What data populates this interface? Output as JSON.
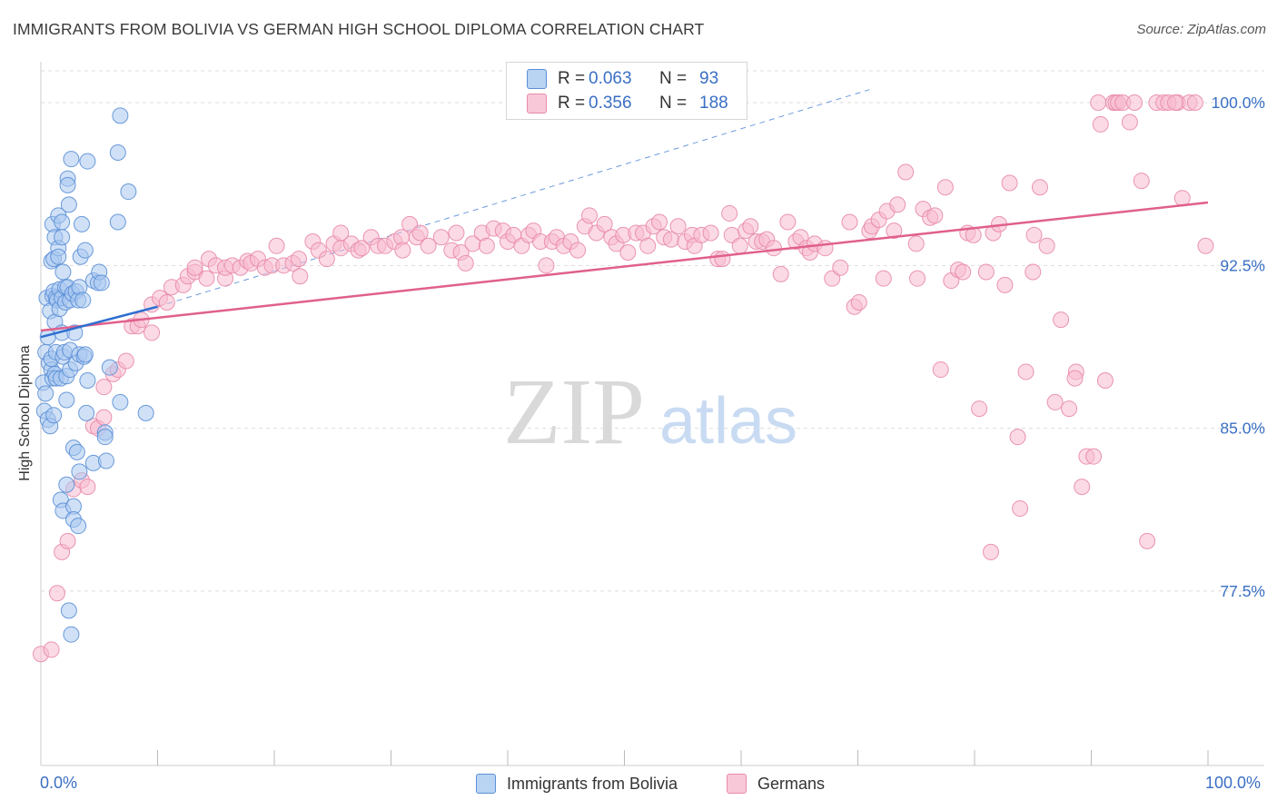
{
  "title": "IMMIGRANTS FROM BOLIVIA VS GERMAN HIGH SCHOOL DIPLOMA CORRELATION CHART",
  "source": "Source: ZipAtlas.com",
  "watermark": {
    "zip": "ZIP",
    "atlas": "atlas"
  },
  "legend": {
    "r_label": "R = ",
    "n_label": "N = ",
    "rows": [
      {
        "r": "0.063",
        "n": "93"
      },
      {
        "r": "0.356",
        "n": "188"
      }
    ]
  },
  "bottom_legend": [
    "Immigrants from Bolivia",
    "Germans"
  ],
  "x_axis_labels": {
    "left": "0.0%",
    "right": "100.0%"
  },
  "colors": {
    "blue_fill": "#a9c8f0",
    "blue_stroke": "#5b8fd6",
    "blue_line": "#2f6fd0",
    "pink_fill": "#f7bcd0",
    "pink_stroke": "#e88aaa",
    "pink_line": "#e0608c",
    "grid": "#dddddd",
    "axis_text": "#3a6fc4"
  },
  "chart_data": {
    "type": "scatter",
    "title": "IMMIGRANTS FROM BOLIVIA VS GERMAN HIGH SCHOOL DIPLOMA CORRELATION CHART",
    "xlabel": "",
    "ylabel": "High School Diploma",
    "xlim": [
      0,
      100
    ],
    "ylim": [
      70.3,
      101.8
    ],
    "y_ticks": [
      {
        "value": 100.0,
        "label": "100.0%"
      },
      {
        "value": 92.5,
        "label": "92.5%"
      },
      {
        "value": 85.0,
        "label": "85.0%"
      },
      {
        "value": 77.5,
        "label": "77.5%"
      }
    ],
    "x_minor_ticks": [
      10,
      20,
      30,
      40,
      50,
      60,
      70,
      80,
      90,
      100
    ],
    "series": [
      {
        "name": "Immigrants from Bolivia",
        "R": 0.063,
        "N": 93,
        "trend": {
          "x": [
            0,
            10
          ],
          "y": [
            89.2,
            90.6
          ]
        },
        "trend_extension": {
          "x": [
            10,
            71
          ],
          "y": [
            90.6,
            100.6
          ]
        },
        "points": [
          [
            0.2,
            87.1
          ],
          [
            0.3,
            85.8
          ],
          [
            0.4,
            88.5
          ],
          [
            0.4,
            86.6
          ],
          [
            0.5,
            91.0
          ],
          [
            0.6,
            85.4
          ],
          [
            0.6,
            89.2
          ],
          [
            0.7,
            88.0
          ],
          [
            0.8,
            90.4
          ],
          [
            0.8,
            85.1
          ],
          [
            0.9,
            92.7
          ],
          [
            0.9,
            87.7
          ],
          [
            0.9,
            88.2
          ],
          [
            1.0,
            94.4
          ],
          [
            1.0,
            91.1
          ],
          [
            1.0,
            87.3
          ],
          [
            1.1,
            85.6
          ],
          [
            1.1,
            92.8
          ],
          [
            1.1,
            91.3
          ],
          [
            1.2,
            89.9
          ],
          [
            1.2,
            87.5
          ],
          [
            1.2,
            93.8
          ],
          [
            1.3,
            91.0
          ],
          [
            1.3,
            88.5
          ],
          [
            1.3,
            87.3
          ],
          [
            1.4,
            90.9
          ],
          [
            1.5,
            94.8
          ],
          [
            1.5,
            93.3
          ],
          [
            1.5,
            92.9
          ],
          [
            1.6,
            91.4
          ],
          [
            1.6,
            90.5
          ],
          [
            1.7,
            87.3
          ],
          [
            1.7,
            81.7
          ],
          [
            1.8,
            94.5
          ],
          [
            1.8,
            93.8
          ],
          [
            1.8,
            91.0
          ],
          [
            1.8,
            89.4
          ],
          [
            1.9,
            92.2
          ],
          [
            1.9,
            88.3
          ],
          [
            1.9,
            81.2
          ],
          [
            2.0,
            88.5
          ],
          [
            2.1,
            91.5
          ],
          [
            2.1,
            90.8
          ],
          [
            2.2,
            87.4
          ],
          [
            2.2,
            86.3
          ],
          [
            2.2,
            82.4
          ],
          [
            2.3,
            96.5
          ],
          [
            2.3,
            96.2
          ],
          [
            2.3,
            91.5
          ],
          [
            2.4,
            95.3
          ],
          [
            2.4,
            76.6
          ],
          [
            2.5,
            90.9
          ],
          [
            2.5,
            88.6
          ],
          [
            2.5,
            87.7
          ],
          [
            2.6,
            97.4
          ],
          [
            2.6,
            75.5
          ],
          [
            2.7,
            91.2
          ],
          [
            2.8,
            84.1
          ],
          [
            2.8,
            81.4
          ],
          [
            2.8,
            80.8
          ],
          [
            2.9,
            89.4
          ],
          [
            3.0,
            91.3
          ],
          [
            3.0,
            88.0
          ],
          [
            3.1,
            83.9
          ],
          [
            3.2,
            90.9
          ],
          [
            3.2,
            80.5
          ],
          [
            3.3,
            91.5
          ],
          [
            3.3,
            88.4
          ],
          [
            3.3,
            83.0
          ],
          [
            3.4,
            92.9
          ],
          [
            3.5,
            94.4
          ],
          [
            3.6,
            90.9
          ],
          [
            3.7,
            88.3
          ],
          [
            3.8,
            93.2
          ],
          [
            3.8,
            88.4
          ],
          [
            3.9,
            85.7
          ],
          [
            4.0,
            87.2
          ],
          [
            4.0,
            97.3
          ],
          [
            4.5,
            91.8
          ],
          [
            4.5,
            83.4
          ],
          [
            4.9,
            91.7
          ],
          [
            5.0,
            92.2
          ],
          [
            5.2,
            91.7
          ],
          [
            5.5,
            84.8
          ],
          [
            5.5,
            84.6
          ],
          [
            5.6,
            83.5
          ],
          [
            5.9,
            87.8
          ],
          [
            6.6,
            94.5
          ],
          [
            6.8,
            99.4
          ],
          [
            6.6,
            97.7
          ],
          [
            6.8,
            86.2
          ],
          [
            7.5,
            95.9
          ],
          [
            9.0,
            85.7
          ]
        ]
      },
      {
        "name": "Germans",
        "R": 0.356,
        "N": 188,
        "trend": {
          "x": [
            0,
            100
          ],
          "y": [
            89.5,
            95.4
          ]
        },
        "points": [
          [
            0.0,
            74.6
          ],
          [
            0.9,
            74.8
          ],
          [
            1.4,
            77.4
          ],
          [
            1.8,
            79.3
          ],
          [
            2.3,
            79.8
          ],
          [
            2.8,
            82.2
          ],
          [
            3.5,
            82.6
          ],
          [
            4.0,
            82.3
          ],
          [
            4.5,
            85.1
          ],
          [
            4.9,
            85.0
          ],
          [
            5.4,
            85.5
          ],
          [
            5.4,
            86.9
          ],
          [
            6.2,
            87.5
          ],
          [
            6.6,
            87.7
          ],
          [
            7.3,
            88.1
          ],
          [
            7.8,
            89.7
          ],
          [
            8.3,
            89.7
          ],
          [
            8.6,
            90.0
          ],
          [
            9.5,
            89.4
          ],
          [
            9.5,
            90.7
          ],
          [
            10.2,
            91.0
          ],
          [
            10.8,
            90.8
          ],
          [
            11.2,
            91.5
          ],
          [
            12.2,
            91.6
          ],
          [
            12.6,
            92.0
          ],
          [
            13.2,
            92.2
          ],
          [
            13.2,
            92.4
          ],
          [
            14.2,
            91.9
          ],
          [
            14.4,
            92.8
          ],
          [
            15.0,
            92.5
          ],
          [
            15.8,
            91.9
          ],
          [
            15.8,
            92.4
          ],
          [
            16.4,
            92.5
          ],
          [
            17.1,
            92.4
          ],
          [
            17.7,
            92.7
          ],
          [
            18.0,
            92.6
          ],
          [
            18.6,
            92.8
          ],
          [
            19.2,
            92.4
          ],
          [
            19.8,
            92.5
          ],
          [
            20.2,
            93.4
          ],
          [
            20.8,
            92.5
          ],
          [
            21.6,
            92.6
          ],
          [
            22.1,
            92.8
          ],
          [
            22.2,
            92.0
          ],
          [
            23.3,
            93.6
          ],
          [
            23.8,
            93.2
          ],
          [
            24.5,
            92.8
          ],
          [
            25.1,
            93.5
          ],
          [
            25.7,
            94.0
          ],
          [
            25.7,
            93.3
          ],
          [
            26.6,
            93.5
          ],
          [
            27.2,
            93.2
          ],
          [
            27.5,
            93.3
          ],
          [
            28.3,
            93.8
          ],
          [
            28.9,
            93.4
          ],
          [
            29.5,
            93.4
          ],
          [
            30.3,
            93.6
          ],
          [
            30.9,
            93.8
          ],
          [
            31.0,
            93.2
          ],
          [
            31.6,
            94.4
          ],
          [
            32.2,
            93.8
          ],
          [
            32.5,
            94.0
          ],
          [
            33.2,
            93.4
          ],
          [
            34.3,
            93.8
          ],
          [
            35.2,
            93.2
          ],
          [
            35.6,
            94.0
          ],
          [
            36.0,
            93.1
          ],
          [
            36.4,
            92.6
          ],
          [
            37.0,
            93.5
          ],
          [
            37.8,
            94.0
          ],
          [
            38.2,
            93.4
          ],
          [
            38.8,
            94.2
          ],
          [
            39.6,
            94.1
          ],
          [
            40.0,
            93.6
          ],
          [
            40.5,
            93.9
          ],
          [
            41.2,
            93.4
          ],
          [
            41.8,
            93.9
          ],
          [
            42.2,
            94.1
          ],
          [
            42.8,
            93.6
          ],
          [
            43.3,
            92.5
          ],
          [
            43.8,
            93.6
          ],
          [
            44.2,
            93.8
          ],
          [
            44.8,
            93.4
          ],
          [
            45.4,
            93.6
          ],
          [
            46.0,
            93.2
          ],
          [
            46.6,
            94.3
          ],
          [
            47.0,
            94.8
          ],
          [
            47.6,
            94.0
          ],
          [
            48.3,
            94.4
          ],
          [
            48.9,
            93.8
          ],
          [
            49.3,
            93.5
          ],
          [
            49.9,
            93.9
          ],
          [
            50.3,
            93.1
          ],
          [
            51.0,
            94.0
          ],
          [
            51.6,
            94.0
          ],
          [
            52.0,
            93.4
          ],
          [
            52.5,
            94.3
          ],
          [
            53.0,
            94.5
          ],
          [
            53.4,
            93.8
          ],
          [
            54.0,
            93.7
          ],
          [
            54.6,
            94.3
          ],
          [
            55.2,
            93.6
          ],
          [
            55.8,
            93.9
          ],
          [
            56.0,
            93.4
          ],
          [
            56.6,
            93.9
          ],
          [
            57.4,
            94.0
          ],
          [
            58.0,
            92.8
          ],
          [
            58.4,
            92.8
          ],
          [
            59.0,
            94.9
          ],
          [
            59.2,
            93.9
          ],
          [
            59.9,
            93.4
          ],
          [
            60.4,
            94.1
          ],
          [
            60.8,
            94.3
          ],
          [
            61.3,
            93.6
          ],
          [
            61.8,
            93.6
          ],
          [
            62.2,
            93.7
          ],
          [
            62.8,
            93.3
          ],
          [
            63.4,
            92.1
          ],
          [
            64.0,
            94.5
          ],
          [
            64.7,
            93.6
          ],
          [
            65.1,
            93.8
          ],
          [
            65.6,
            93.3
          ],
          [
            65.9,
            93.1
          ],
          [
            66.3,
            93.5
          ],
          [
            67.2,
            93.3
          ],
          [
            67.8,
            91.9
          ],
          [
            68.5,
            92.4
          ],
          [
            69.3,
            94.5
          ],
          [
            69.7,
            90.6
          ],
          [
            70.1,
            90.8
          ],
          [
            71.0,
            94.1
          ],
          [
            71.2,
            94.3
          ],
          [
            71.8,
            94.6
          ],
          [
            72.2,
            91.9
          ],
          [
            72.5,
            95.0
          ],
          [
            73.1,
            94.1
          ],
          [
            73.4,
            95.3
          ],
          [
            74.1,
            96.8
          ],
          [
            75.1,
            91.9
          ],
          [
            75.6,
            95.1
          ],
          [
            76.2,
            94.7
          ],
          [
            76.6,
            94.8
          ],
          [
            77.1,
            87.7
          ],
          [
            77.5,
            96.1
          ],
          [
            78.0,
            91.8
          ],
          [
            78.6,
            92.3
          ],
          [
            79.0,
            92.2
          ],
          [
            79.4,
            94.0
          ],
          [
            79.9,
            93.9
          ],
          [
            80.4,
            85.9
          ],
          [
            81.0,
            92.2
          ],
          [
            81.6,
            94.0
          ],
          [
            82.1,
            94.4
          ],
          [
            82.6,
            91.6
          ],
          [
            83.0,
            96.3
          ],
          [
            83.7,
            84.6
          ],
          [
            83.9,
            81.3
          ],
          [
            84.4,
            87.6
          ],
          [
            85.0,
            92.2
          ],
          [
            85.1,
            93.9
          ],
          [
            85.6,
            96.1
          ],
          [
            86.2,
            93.4
          ],
          [
            86.9,
            86.2
          ],
          [
            87.4,
            90.0
          ],
          [
            88.1,
            85.9
          ],
          [
            88.7,
            87.6
          ],
          [
            89.2,
            82.3
          ],
          [
            89.6,
            83.7
          ],
          [
            90.2,
            83.7
          ],
          [
            90.6,
            100.0
          ],
          [
            90.8,
            99.0
          ],
          [
            91.2,
            87.2
          ],
          [
            91.9,
            100.0
          ],
          [
            92.1,
            100.0
          ],
          [
            92.3,
            100.0
          ],
          [
            92.7,
            100.0
          ],
          [
            93.3,
            99.1
          ],
          [
            93.7,
            100.0
          ],
          [
            94.3,
            96.4
          ],
          [
            94.8,
            79.8
          ],
          [
            95.6,
            100.0
          ],
          [
            97.4,
            100.0
          ],
          [
            98.4,
            100.0
          ],
          [
            99.8,
            93.4
          ],
          [
            97.8,
            95.6
          ],
          [
            96.2,
            100.0
          ],
          [
            96.6,
            100.0
          ],
          [
            97.2,
            100.0
          ],
          [
            98.9,
            100.0
          ],
          [
            88.6,
            87.3
          ],
          [
            81.4,
            79.3
          ],
          [
            75.0,
            93.5
          ]
        ]
      }
    ]
  }
}
